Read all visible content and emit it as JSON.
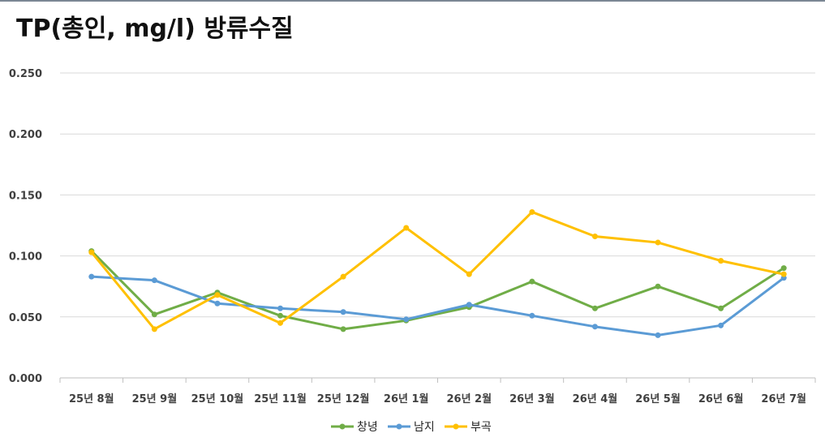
{
  "chart_data": {
    "type": "line",
    "title": "TP(총인, mg/l) 방류수질",
    "categories": [
      "25년 8월",
      "25년 9월",
      "25년 10월",
      "25년 11월",
      "25년 12월",
      "26년 1월",
      "26년 2월",
      "26년 3월",
      "26년 4월",
      "26년 5월",
      "26년 6월",
      "26년 7월"
    ],
    "yticks": [
      "0.000",
      "0.050",
      "0.100",
      "0.150",
      "0.200",
      "0.250"
    ],
    "ylim": [
      0,
      0.25
    ],
    "grid": true,
    "legend_position": "bottom",
    "series": [
      {
        "name": "창녕",
        "color": "#70ad47",
        "values": [
          0.104,
          0.052,
          0.07,
          0.051,
          0.04,
          0.047,
          0.058,
          0.079,
          0.057,
          0.075,
          0.057,
          0.09
        ]
      },
      {
        "name": "남지",
        "color": "#5b9bd5",
        "values": [
          0.083,
          0.08,
          0.061,
          0.057,
          0.054,
          0.048,
          0.06,
          0.051,
          0.042,
          0.035,
          0.043,
          0.082
        ]
      },
      {
        "name": "부곡",
        "color": "#ffc000",
        "values": [
          0.103,
          0.04,
          0.068,
          0.045,
          0.083,
          0.123,
          0.085,
          0.136,
          0.116,
          0.111,
          0.096,
          0.085
        ]
      }
    ]
  }
}
